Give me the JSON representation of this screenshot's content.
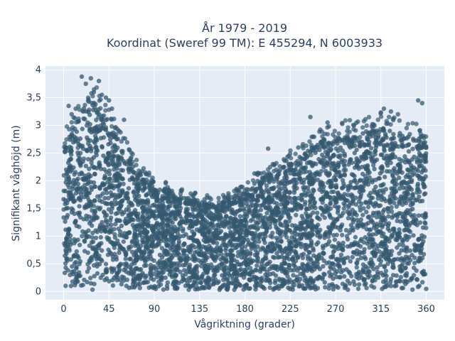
{
  "chart_data": {
    "type": "scatter",
    "title": "År 1979 - 2019",
    "subtitle": "Koordinat (Sweref 99 TM): E 455294, N 6003933",
    "xlabel": "Vågriktning (grader)",
    "ylabel": "Signifikant våghöjd (m)",
    "xlim": [
      -18,
      378
    ],
    "ylim": [
      -0.15,
      4.07
    ],
    "xticks": [
      0,
      45,
      90,
      135,
      180,
      225,
      270,
      315,
      360
    ],
    "xtick_labels": [
      "0",
      "45",
      "90",
      "135",
      "180",
      "225",
      "270",
      "315",
      "360"
    ],
    "yticks": [
      0,
      0.5,
      1,
      1.5,
      2,
      2.5,
      3,
      3.5,
      4
    ],
    "ytick_labels": [
      "0",
      "0,5",
      "1",
      "1,5",
      "2",
      "2,5",
      "3",
      "3,5",
      "4"
    ],
    "grid": true,
    "background_color": "#e5ecf6",
    "marker_color": "#34586f",
    "envelope": {
      "x": [
        0,
        10,
        20,
        30,
        40,
        50,
        60,
        70,
        80,
        90,
        100,
        110,
        120,
        135,
        150,
        165,
        180,
        195,
        210,
        225,
        240,
        255,
        270,
        285,
        300,
        315,
        330,
        345,
        360
      ],
      "y_max": [
        2.9,
        3.1,
        3.6,
        3.7,
        3.4,
        3.1,
        2.8,
        2.4,
        2.2,
        2.0,
        1.95,
        1.85,
        1.8,
        1.75,
        1.7,
        1.75,
        1.95,
        2.2,
        2.3,
        2.5,
        2.7,
        2.9,
        3.0,
        3.05,
        3.1,
        3.2,
        3.1,
        3.0,
        2.9
      ]
    },
    "outliers": {
      "x": [
        18,
        22,
        27,
        30,
        35,
        38,
        42,
        45,
        48,
        12,
        8,
        5,
        55,
        60,
        203,
        233,
        245,
        262,
        318,
        325,
        332,
        352,
        356,
        2
      ],
      "y": [
        3.88,
        3.75,
        3.85,
        3.6,
        3.8,
        3.55,
        3.5,
        3.45,
        3.3,
        3.3,
        3.2,
        3.35,
        2.9,
        3.1,
        2.58,
        2.6,
        3.15,
        3.05,
        3.3,
        3.25,
        3.2,
        3.45,
        3.4,
        2.6
      ]
    }
  }
}
